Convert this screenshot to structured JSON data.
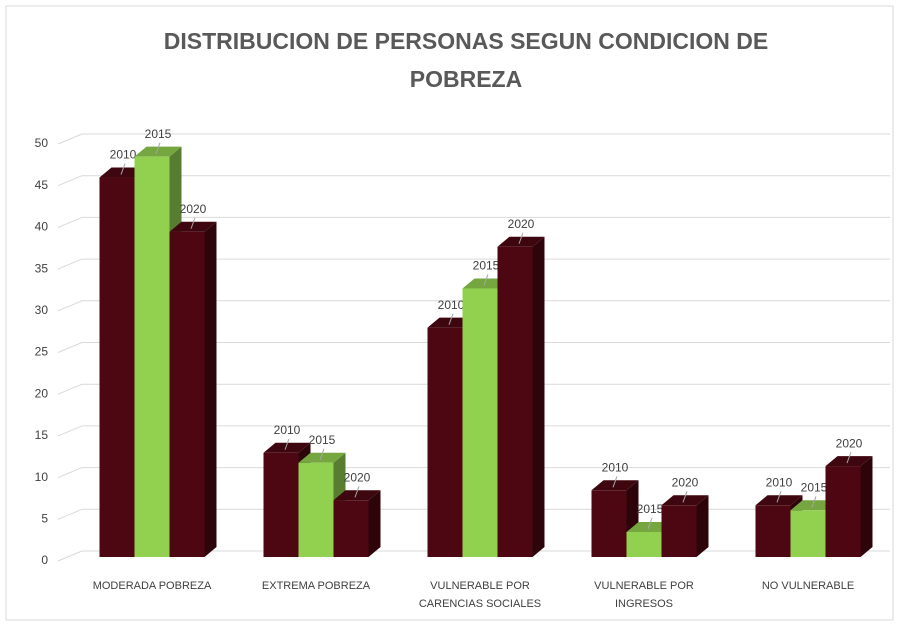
{
  "chart_data": {
    "type": "bar3d",
    "title": "DISTRIBUCION DE PERSONAS SEGUN CONDICION DE POBREZA",
    "categories": [
      "MODERADA POBREZA",
      "EXTREMA POBREZA",
      "VULNERABLE POR CARENCIAS SOCIALES",
      "VULNERABLE POR INGRESOS",
      "NO VULNERABLE"
    ],
    "series": [
      {
        "name": "2010",
        "color": "#4d0712",
        "values": [
          45.5,
          12.5,
          27.5,
          8,
          6.2
        ]
      },
      {
        "name": "2015",
        "color": "#92d050",
        "values": [
          48,
          11.3,
          32.2,
          3,
          5.6
        ]
      },
      {
        "name": "2020",
        "color": "#4d0712",
        "values": [
          39,
          6.8,
          37.2,
          6.2,
          10.9
        ]
      }
    ],
    "ylim": [
      0,
      50
    ],
    "yticks": [
      0,
      5,
      10,
      15,
      20,
      25,
      30,
      35,
      40,
      45,
      50
    ],
    "grid": true
  }
}
